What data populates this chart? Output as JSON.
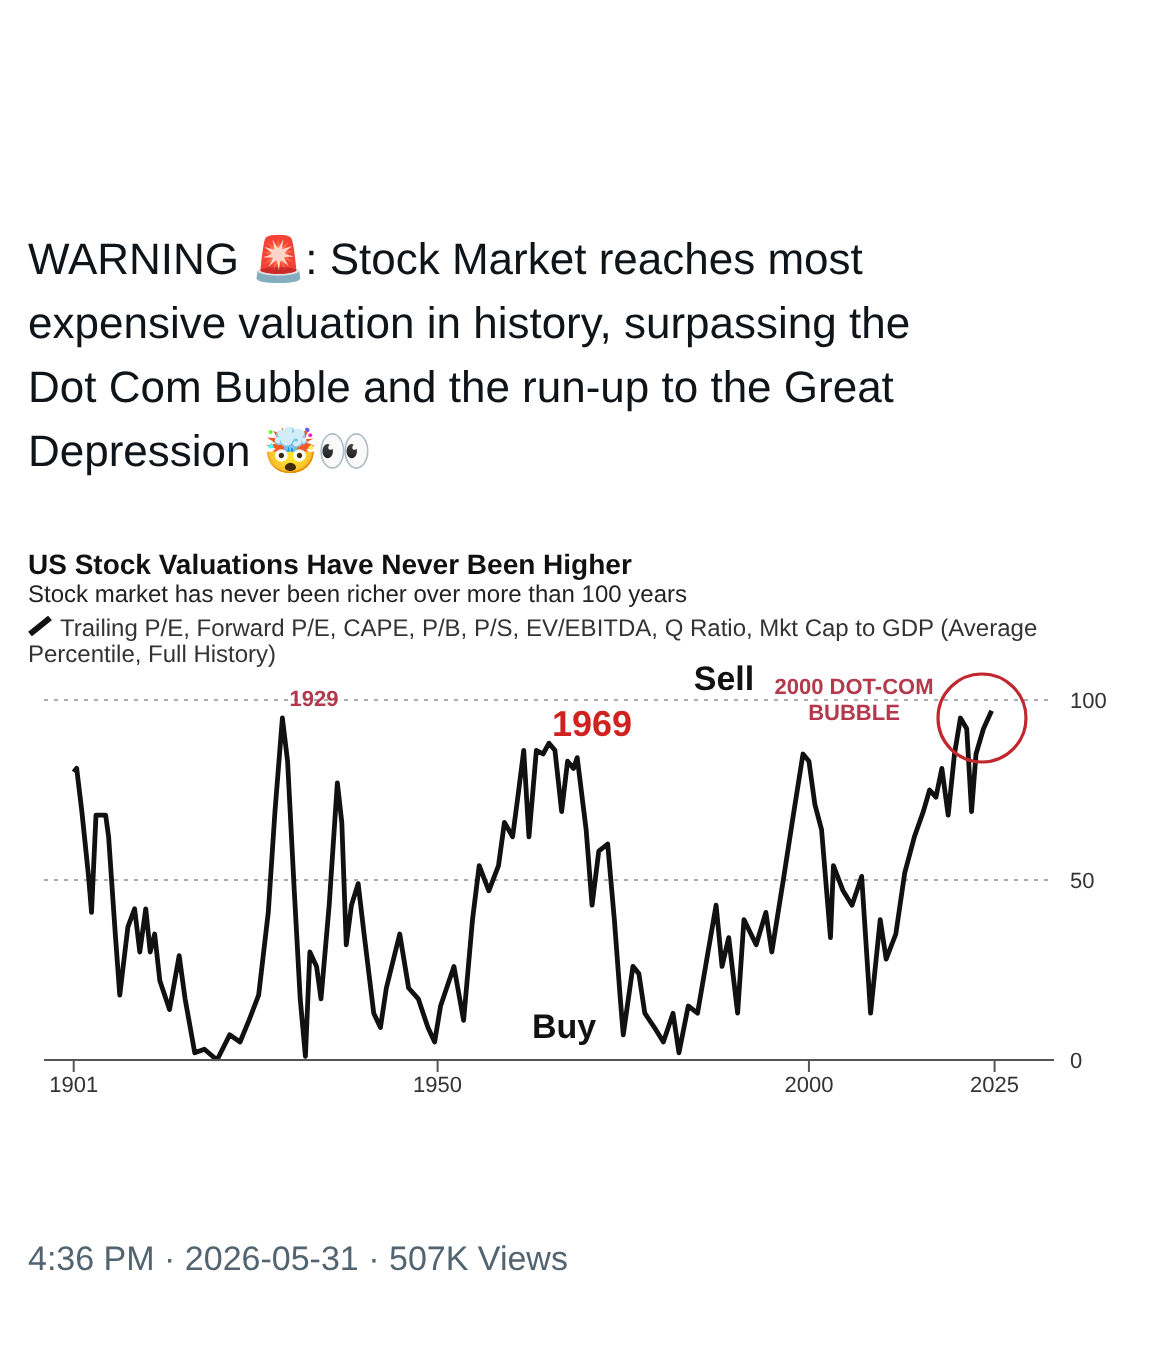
{
  "chart_data": {
    "type": "line",
    "title": "US Stock Valuations Have Never Been Higher",
    "subtitle": "Stock market has never been richer over more than 100 years",
    "annotations": [
      "WARNING 🚨: Stock Market reaches most expensive valuation in history, surpassing the Dot Com Bubble and the run-up to the Great Depression 🤯👀",
      "1929",
      "1969",
      "Sell",
      "Buy",
      "2000 DOT-COM BUBBLE",
      "4:36 PM · 2026-05-31 · 507K Views"
    ],
    "xlim": [
      1897,
      2033
    ],
    "xticks": [
      1901,
      1950,
      2000,
      2025
    ],
    "ylim": [
      0,
      100
    ],
    "yticks": [
      0,
      50,
      100
    ],
    "grid": "y",
    "legend": "top left",
    "marker": "none",
    "line_style": "solid",
    "series": [
      {
        "name": "Trailing P/E, Forward P/E, CAPE, P/B, P/S, EV/EBITDA, Q Ratio, Mkt Cap to GDP (Average Percentile, Full History)",
        "color": "#111111",
        "x": [
          1901,
          1901.4,
          1902.1,
          1903,
          1903.4,
          1904,
          1905.3,
          1905.7,
          1906.6,
          1907.2,
          1908.3,
          1909.2,
          1909.9,
          1910.7,
          1911.3,
          1911.9,
          1912.6,
          1913.9,
          1915.2,
          1916,
          1917.3,
          1918.6,
          1920.3,
          1922,
          1923.4,
          1924.6,
          1925.9,
          1927.2,
          1928.1,
          1929.1,
          1929.8,
          1930.7,
          1931.5,
          1932.2,
          1932.8,
          1933.7,
          1934.3,
          1935.4,
          1936.5,
          1937.1,
          1937.7,
          1938.4,
          1939.3,
          1940.1,
          1941.4,
          1942.3,
          1943.1,
          1944.9,
          1946.1,
          1947.4,
          1948.7,
          1949.6,
          1950.4,
          1952.2,
          1953.5,
          1954.7,
          1955.6,
          1956.9,
          1958.2,
          1959,
          1960.1,
          1960.8,
          1961.6,
          1962.3,
          1963.3,
          1964.2,
          1965,
          1965.8,
          1966.7,
          1967.5,
          1968.3,
          1968.8,
          1970,
          1970.8,
          1971.7,
          1972.9,
          1973.8,
          1974.6,
          1975,
          1976.3,
          1977.1,
          1977.9,
          1979.2,
          1980.4,
          1981.7,
          1982.5,
          1983.75,
          1985,
          1986.25,
          1987.5,
          1988.3,
          1989.2,
          1990.4,
          1991.25,
          1992.9,
          1994.2,
          1995,
          1996.7,
          1997.9,
          1999.2,
          2000,
          2000.8,
          2001.7,
          2002.9,
          2003.3,
          2004.6,
          2005.8,
          2007.1,
          2008.3,
          2009.6,
          2010.4,
          2011.7,
          2012.9,
          2014.2,
          2015.4,
          2016.25,
          2017.1,
          2017.9,
          2018.75,
          2019.6,
          2020.4,
          2021.25,
          2021.9,
          2022.5,
          2023.5,
          2024.6
        ],
        "values": [
          80,
          81,
          69,
          51,
          41,
          68,
          68,
          62,
          35,
          18,
          37,
          42,
          30,
          42,
          30,
          35,
          22,
          14,
          29,
          17,
          2,
          3,
          0,
          7,
          5,
          11,
          18,
          41,
          69,
          95,
          83,
          47,
          17,
          1,
          30,
          26,
          17,
          43,
          77,
          66,
          32,
          43,
          49,
          35,
          13,
          9,
          20,
          35,
          20,
          17,
          9,
          5,
          15,
          26,
          11,
          39,
          54,
          47,
          54,
          66,
          62,
          73,
          86,
          62,
          86,
          85,
          88,
          86,
          69,
          83,
          81,
          84,
          64,
          43,
          58,
          60,
          39,
          17,
          7,
          26,
          24,
          13,
          9,
          5,
          13,
          2,
          15,
          13,
          28,
          43,
          26,
          34,
          13,
          39,
          32,
          41,
          30,
          52,
          68,
          85,
          83,
          71,
          64,
          34,
          54,
          47,
          43,
          51,
          13,
          39,
          28,
          35,
          52,
          62,
          69,
          75,
          73,
          81,
          68,
          85,
          95,
          92,
          69,
          85,
          92,
          97
        ]
      }
    ]
  }
}
